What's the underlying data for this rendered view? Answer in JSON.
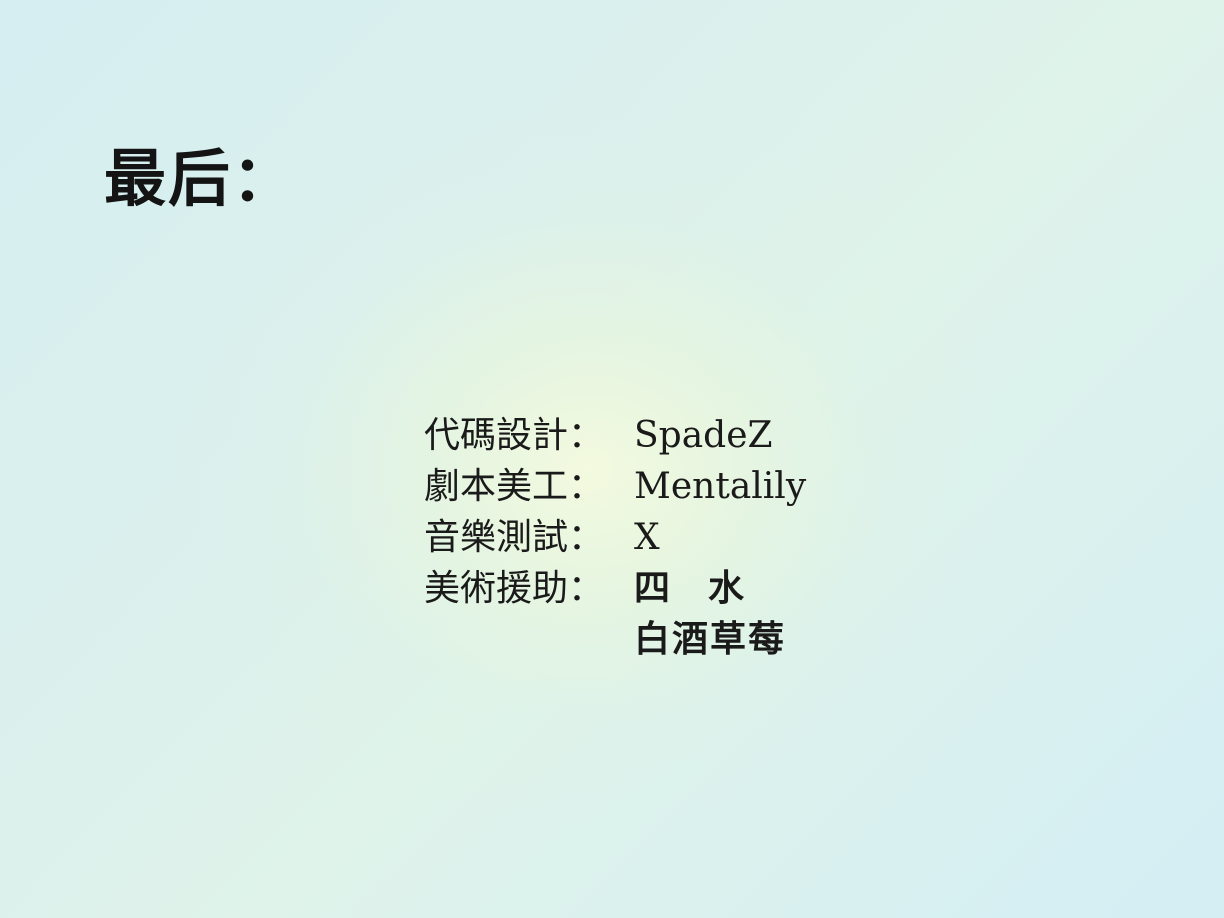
{
  "screen": {
    "title": "最后：",
    "credits": [
      {
        "role": "代碼設計：",
        "names": [
          "SpadeZ"
        ]
      },
      {
        "role": "劇本美工：",
        "names": [
          "Mentalily"
        ]
      },
      {
        "role": "音樂測試：",
        "names": [
          "X"
        ]
      },
      {
        "role": "美術援助：",
        "names": [
          "四水",
          "白酒草莓"
        ]
      }
    ]
  }
}
